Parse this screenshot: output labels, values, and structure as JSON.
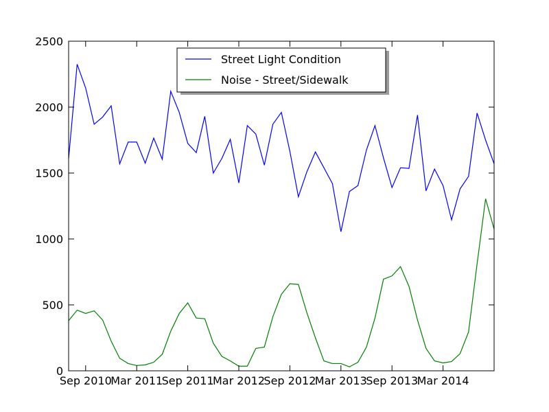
{
  "chart_data": {
    "type": "line",
    "title": "",
    "xlabel": "",
    "ylabel": "",
    "x_start": "2010-07",
    "x_end": "2014-09",
    "x_ticks": [
      "Sep 2010",
      "Mar 2011",
      "Sep 2011",
      "Mar 2012",
      "Sep 2012",
      "Mar 2013",
      "Sep 2013",
      "Mar 2014"
    ],
    "x_tick_dates": [
      "2010-09",
      "2011-03",
      "2011-09",
      "2012-03",
      "2012-09",
      "2013-03",
      "2013-09",
      "2014-03"
    ],
    "ylim": [
      0,
      2500
    ],
    "y_ticks": [
      0,
      500,
      1000,
      1500,
      2000,
      2500
    ],
    "grid": false,
    "legend_position": "top-center",
    "x": [
      "2010-07",
      "2010-08",
      "2010-09",
      "2010-10",
      "2010-11",
      "2010-12",
      "2011-01",
      "2011-02",
      "2011-03",
      "2011-04",
      "2011-05",
      "2011-06",
      "2011-07",
      "2011-08",
      "2011-09",
      "2011-10",
      "2011-11",
      "2011-12",
      "2012-01",
      "2012-02",
      "2012-03",
      "2012-04",
      "2012-05",
      "2012-06",
      "2012-07",
      "2012-08",
      "2012-09",
      "2012-10",
      "2012-11",
      "2012-12",
      "2013-01",
      "2013-02",
      "2013-03",
      "2013-04",
      "2013-05",
      "2013-06",
      "2013-07",
      "2013-08",
      "2013-09",
      "2013-10",
      "2013-11",
      "2013-12",
      "2014-01",
      "2014-02",
      "2014-03",
      "2014-04",
      "2014-05",
      "2014-06",
      "2014-07",
      "2014-08",
      "2014-09"
    ],
    "series": [
      {
        "name": "Street Light Condition",
        "color": "#0000ff",
        "values": [
          1610,
          2325,
          2145,
          1870,
          1925,
          2010,
          1570,
          1735,
          1735,
          1575,
          1765,
          1605,
          2120,
          1960,
          1725,
          1655,
          1930,
          1500,
          1610,
          1755,
          1425,
          1860,
          1795,
          1560,
          1870,
          1960,
          1665,
          1320,
          1510,
          1660,
          1540,
          1420,
          1055,
          1360,
          1405,
          1675,
          1860,
          1615,
          1390,
          1540,
          1535,
          1940,
          1365,
          1530,
          1405,
          1145,
          1380,
          1475,
          1955,
          1750,
          1570
        ]
      },
      {
        "name": "Noise - Street/Sidewalk",
        "color": "#008000",
        "values": [
          380,
          460,
          435,
          455,
          385,
          225,
          95,
          55,
          40,
          45,
          65,
          125,
          300,
          435,
          515,
          400,
          395,
          210,
          110,
          75,
          35,
          35,
          170,
          180,
          410,
          580,
          660,
          655,
          440,
          250,
          75,
          55,
          55,
          30,
          65,
          180,
          400,
          695,
          720,
          790,
          640,
          385,
          170,
          75,
          60,
          70,
          130,
          295,
          810,
          1305,
          1075
        ]
      }
    ]
  }
}
